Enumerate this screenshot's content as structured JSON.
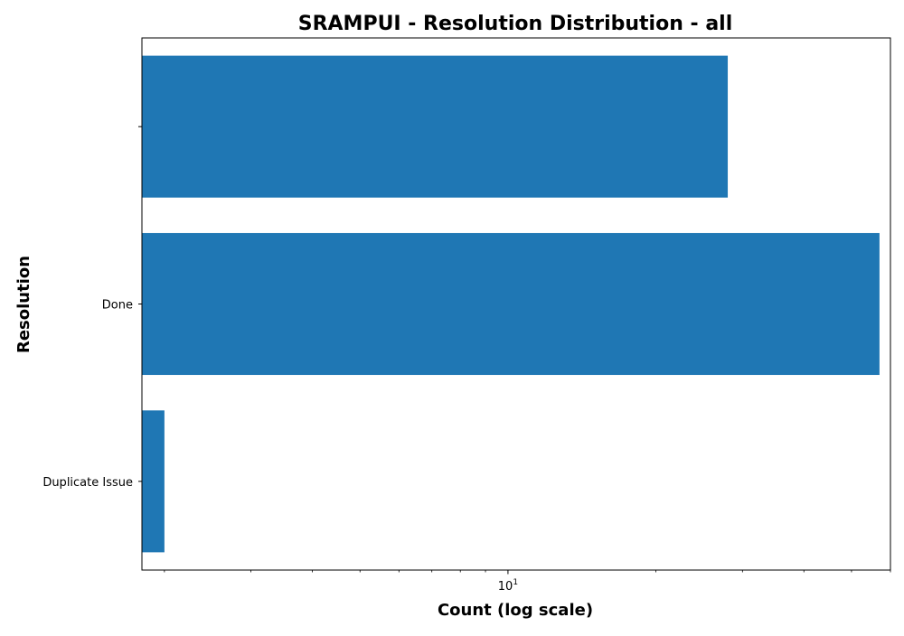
{
  "chart_data": {
    "type": "bar",
    "orientation": "horizontal",
    "title": "SRAMPUI - Resolution Distribution - all",
    "xlabel": "Count (log scale)",
    "ylabel": "Resolution",
    "x_scale": "log",
    "xlim": [
      1.8,
      60
    ],
    "x_tick_labels": [
      {
        "value": 10,
        "base": "10",
        "exponent": "1"
      }
    ],
    "categories": [
      "",
      "Done",
      "Duplicate Issue"
    ],
    "values": [
      28,
      57,
      2
    ],
    "bar_color": "#1f77b4",
    "grid": false,
    "legend": "none"
  }
}
